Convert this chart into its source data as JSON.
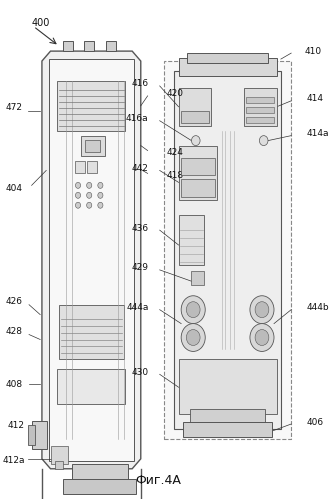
{
  "title": "Фиг.4А",
  "bg_color": "#ffffff",
  "label_color": "#222222",
  "line_color": "#555555",
  "fig_label": "400",
  "left_labels": [
    "472",
    "404",
    "426",
    "428",
    "408",
    "412",
    "412a"
  ],
  "right_labels": [
    "420",
    "424",
    "418"
  ],
  "detail_labels_left": [
    "416",
    "416a",
    "442",
    "436",
    "429",
    "444a",
    "430"
  ],
  "detail_labels_right": [
    "410",
    "414",
    "414a",
    "444b",
    "406"
  ]
}
